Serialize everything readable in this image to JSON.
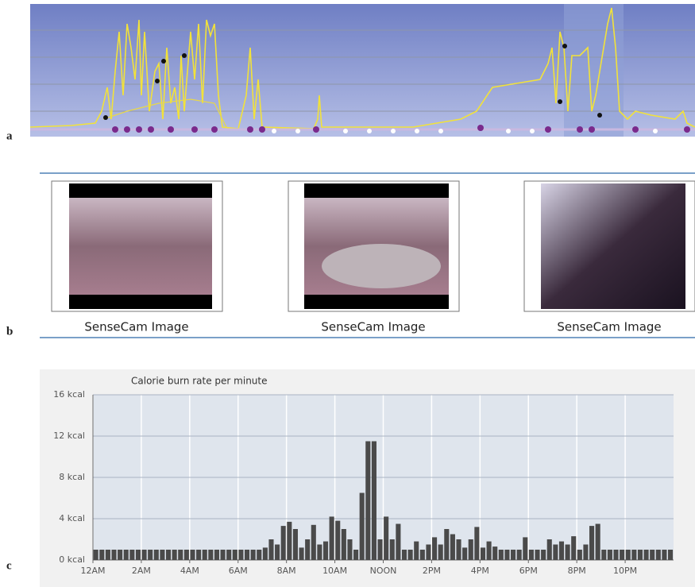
{
  "panel_labels": [
    "a",
    "b",
    "c"
  ],
  "images": {
    "captions": [
      "SenseCam Image",
      "SenseCam Image",
      "SenseCam Image"
    ]
  },
  "chart_data": {
    "type": "bar",
    "title": "Calorie burn rate per minute",
    "color": "#4a4a4a",
    "grid": true,
    "xlim": [
      0,
      24
    ],
    "xticks": [
      {
        "value": 0,
        "label": "12AM"
      },
      {
        "value": 2,
        "label": "2AM"
      },
      {
        "value": 4,
        "label": "4AM"
      },
      {
        "value": 6,
        "label": "6AM"
      },
      {
        "value": 8,
        "label": "8AM"
      },
      {
        "value": 10,
        "label": "10AM"
      },
      {
        "value": 12,
        "label": "NOON"
      },
      {
        "value": 14,
        "label": "2PM"
      },
      {
        "value": 16,
        "label": "4PM"
      },
      {
        "value": 18,
        "label": "6PM"
      },
      {
        "value": 20,
        "label": "8PM"
      },
      {
        "value": 22,
        "label": "10PM"
      }
    ],
    "ylim": [
      0,
      16
    ],
    "yticks": [
      {
        "value": 0,
        "label": "0 kcal"
      },
      {
        "value": 4,
        "label": "4 kcal"
      },
      {
        "value": 8,
        "label": "8 kcal"
      },
      {
        "value": 12,
        "label": "12 kcal"
      },
      {
        "value": 16,
        "label": "16 kcal"
      }
    ],
    "x": [
      0,
      0.25,
      0.5,
      0.75,
      1,
      1.25,
      1.5,
      1.75,
      2,
      2.25,
      2.5,
      2.75,
      3,
      3.25,
      3.5,
      3.75,
      4,
      4.25,
      4.5,
      4.75,
      5,
      5.25,
      5.5,
      5.75,
      6,
      6.25,
      6.5,
      6.75,
      7,
      7.25,
      7.5,
      7.75,
      8,
      8.25,
      8.5,
      8.75,
      9,
      9.25,
      9.5,
      9.75,
      10,
      10.25,
      10.5,
      10.75,
      11,
      11.25,
      11.5,
      11.75,
      12,
      12.25,
      12.5,
      12.75,
      13,
      13.25,
      13.5,
      13.75,
      14,
      14.25,
      14.5,
      14.75,
      15,
      15.25,
      15.5,
      15.75,
      16,
      16.25,
      16.5,
      16.75,
      17,
      17.25,
      17.5,
      17.75,
      18,
      18.25,
      18.5,
      18.75,
      19,
      19.25,
      19.5,
      19.75,
      20,
      20.25,
      20.5,
      20.75,
      21,
      21.25,
      21.5,
      21.75,
      22,
      22.25,
      22.5,
      22.75,
      23,
      23.25,
      23.5,
      23.75
    ],
    "values": [
      1,
      1,
      1,
      1,
      1,
      1,
      1,
      1,
      1,
      1,
      1,
      1,
      1,
      1,
      1,
      1,
      1,
      1,
      1,
      1,
      1,
      1,
      1,
      1,
      1,
      1,
      1,
      1,
      1.2,
      2.0,
      1.5,
      3.3,
      3.7,
      3.0,
      1.2,
      2.0,
      3.4,
      1.5,
      1.8,
      4.2,
      3.8,
      3.0,
      2.0,
      1.0,
      6.5,
      11.5,
      11.5,
      2.0,
      4.2,
      2.0,
      3.5,
      1.0,
      1.0,
      1.8,
      1.0,
      1.5,
      2.2,
      1.5,
      3.0,
      2.5,
      2.0,
      1.2,
      2.0,
      3.2,
      1.2,
      1.8,
      1.3,
      1.0,
      1.0,
      1.0,
      1.0,
      2.2,
      1.0,
      1.0,
      1.0,
      2.0,
      1.5,
      1.8,
      1.5,
      2.3,
      1.0,
      1.5,
      3.3,
      3.5,
      1,
      1,
      1,
      1,
      1,
      1,
      1,
      1,
      1,
      1,
      1,
      1
    ]
  }
}
